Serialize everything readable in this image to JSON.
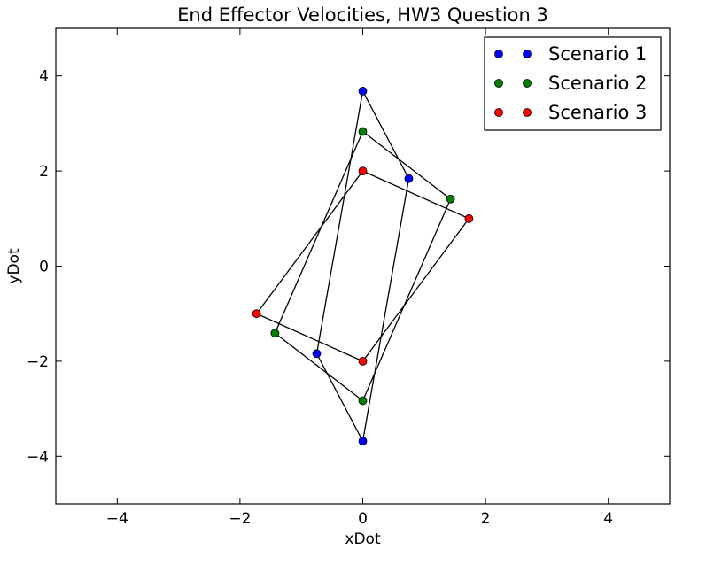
{
  "chart_data": {
    "type": "scatter",
    "title": "End Effector Velocities, HW3 Question 3",
    "xlabel": "xDot",
    "ylabel": "yDot",
    "xlim": [
      -5,
      5
    ],
    "ylim": [
      -5,
      5
    ],
    "xticks": [
      -4,
      -2,
      0,
      2,
      4
    ],
    "yticks": [
      -4,
      -2,
      0,
      2,
      4
    ],
    "xtick_labels": [
      "−4",
      "−2",
      "0",
      "2",
      "4"
    ],
    "ytick_labels": [
      "−4",
      "−2",
      "0",
      "2",
      "4"
    ],
    "grid": false,
    "legend_position": "top-right",
    "series": [
      {
        "name": "Scenario 1",
        "color": "#0000ff",
        "points": [
          [
            0.0,
            3.68
          ],
          [
            0.75,
            1.84
          ],
          [
            0.0,
            -3.68
          ],
          [
            -0.75,
            -1.84
          ]
        ]
      },
      {
        "name": "Scenario 2",
        "color": "#007f00",
        "points": [
          [
            0.0,
            2.83
          ],
          [
            1.43,
            1.41
          ],
          [
            0.0,
            -2.83
          ],
          [
            -1.43,
            -1.41
          ]
        ]
      },
      {
        "name": "Scenario 3",
        "color": "#ff0000",
        "points": [
          [
            0.0,
            2.0
          ],
          [
            1.73,
            1.0
          ],
          [
            0.0,
            -2.0
          ],
          [
            -1.73,
            -1.0
          ]
        ]
      }
    ]
  }
}
